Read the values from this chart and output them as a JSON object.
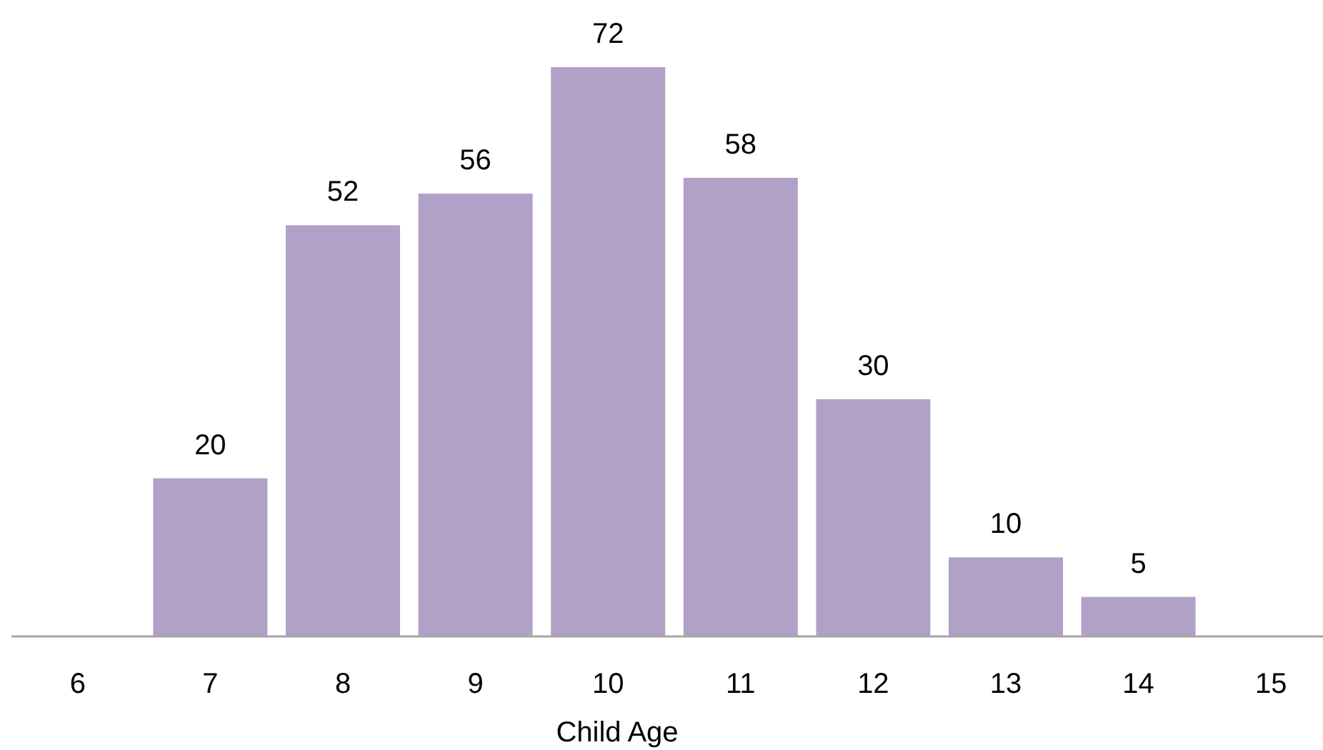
{
  "chart_data": {
    "type": "bar",
    "xlabel": "Child Age",
    "categories": [
      "6",
      "7",
      "8",
      "9",
      "10",
      "11",
      "12",
      "13",
      "14",
      "15"
    ],
    "values": [
      null,
      20,
      52,
      56,
      72,
      58,
      30,
      10,
      5,
      null
    ],
    "color": "#b1a1c7",
    "data_labels": true
  }
}
